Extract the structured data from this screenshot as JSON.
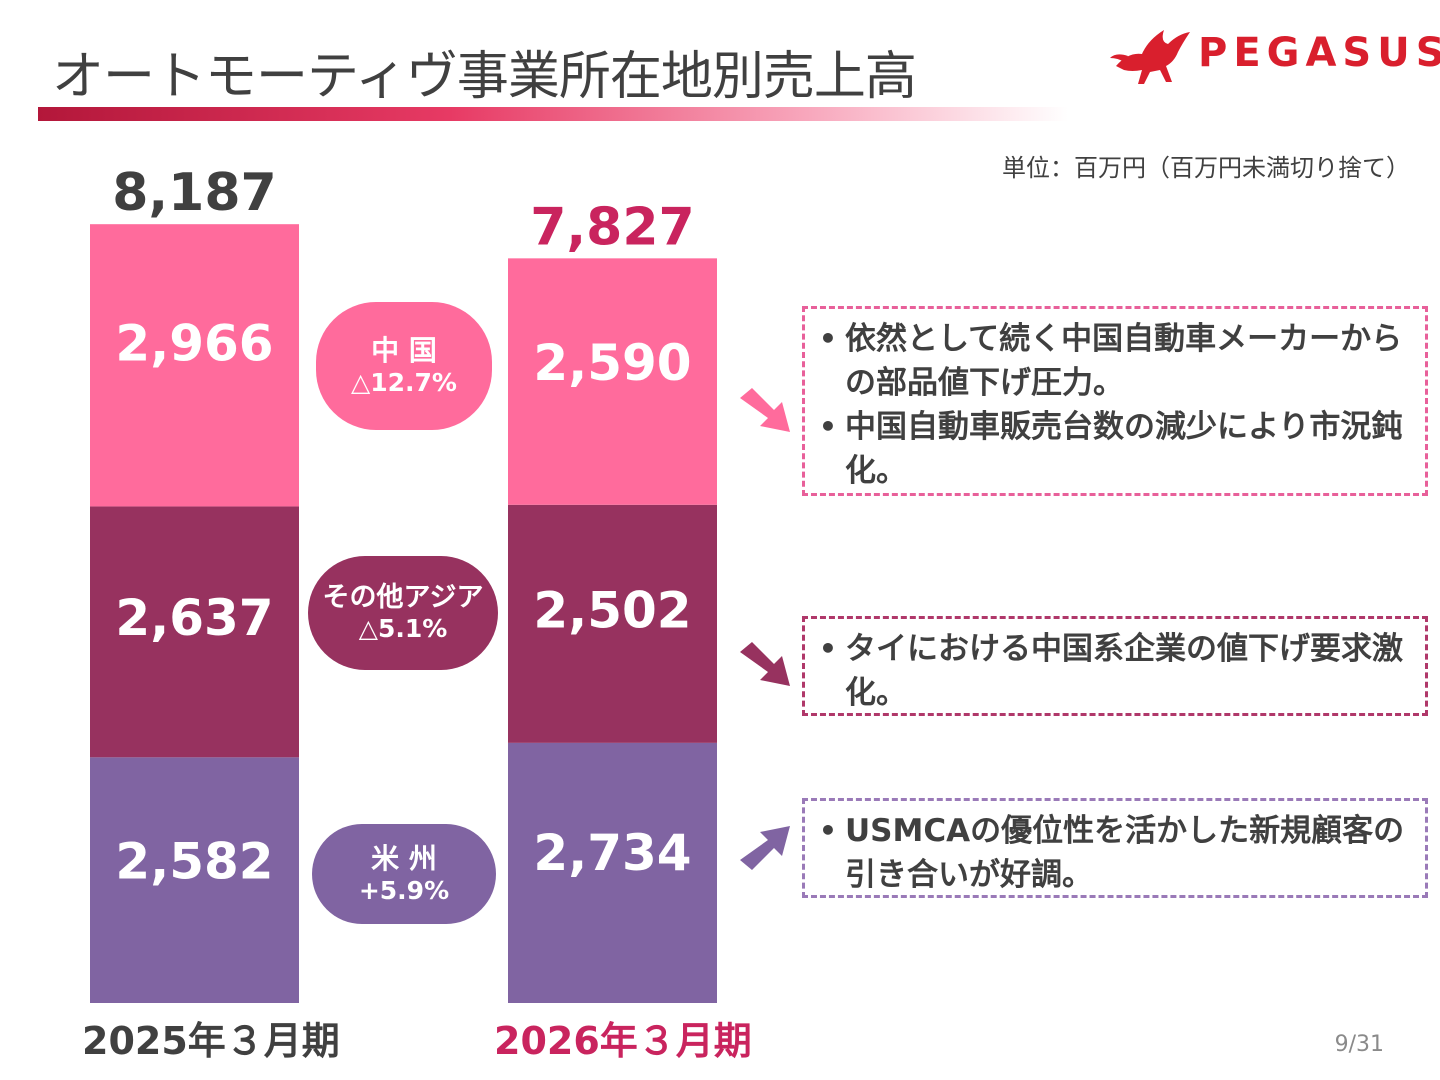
{
  "title": "オートモーティヴ事業所在地別売上高",
  "logo": {
    "text": "PEGASUS",
    "color": "#d91f2d"
  },
  "unit": "単位：百万円（百万円未満切り捨て）",
  "page_number": "9/31",
  "colors": {
    "china": "#ff6b9c",
    "other_asia": "#97325f",
    "usa": "#8064a2",
    "fy2025_total": "#404040",
    "fy2026_total": "#c9245e"
  },
  "chart_data": {
    "type": "bar",
    "stacked": true,
    "categories": [
      "2025年３月期",
      "2026年３月期"
    ],
    "totals": [
      "8,187",
      "7,827"
    ],
    "series": [
      {
        "name": "米 州",
        "values": [
          2582,
          2734
        ],
        "labels": [
          "2,582",
          "2,734"
        ],
        "change": "+5.9%",
        "color": "#8064a2"
      },
      {
        "name": "その他アジア",
        "values": [
          2637,
          2502
        ],
        "labels": [
          "2,637",
          "2,502"
        ],
        "change": "△5.1%",
        "color": "#97325f"
      },
      {
        "name": "中 国",
        "values": [
          2966,
          2590
        ],
        "labels": [
          "2,966",
          "2,590"
        ],
        "change": "△12.7%",
        "color": "#ff6b9c"
      }
    ],
    "ylim": [
      0,
      8187
    ],
    "grid": false
  },
  "notes": [
    {
      "color": "#e8609a",
      "arrow": "down",
      "items": [
        "依然として続く中国自動車メーカーからの部品値下げ圧力。",
        "中国自動車販売台数の減少により市況鈍化。"
      ]
    },
    {
      "color": "#b0386a",
      "arrow": "down",
      "items": [
        "タイにおける中国系企業の値下げ要求激化。"
      ]
    },
    {
      "color": "#9a7ab8",
      "arrow": "up",
      "items": [
        "USMCAの優位性を活かした新規顧客の引き合いが好調。"
      ]
    }
  ]
}
